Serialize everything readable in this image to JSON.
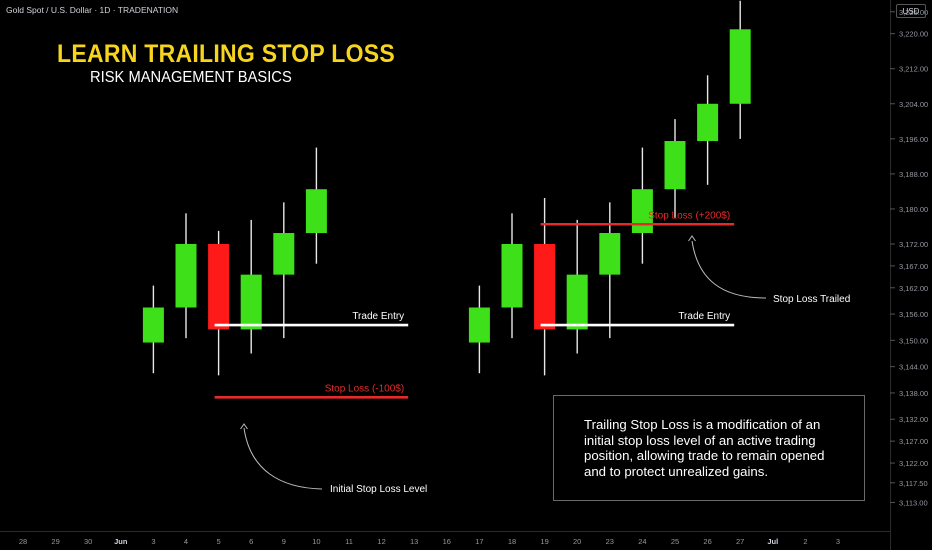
{
  "header": {
    "symbol": "Gold Spot / U.S. Dollar · 1D · TRADENATION",
    "title": "LEARN TRAILING STOP LOSS",
    "subtitle": "RISK MANAGEMENT BASICS",
    "currency": "USD"
  },
  "colors": {
    "up": "#3ee01a",
    "down": "#ff1a1a",
    "stop_line": "#e52a2a",
    "entry_line": "#ffffff",
    "axis_text": "#9598a1",
    "title": "#f7d51d"
  },
  "info_box": {
    "lines": [
      "Trailing Stop Loss is a modification of an",
      "initial stop loss level of an active trading",
      "position, allowing trade to remain opened",
      "and to protect unrealized gains."
    ]
  },
  "chart_data": {
    "type": "candlestick",
    "y_axis": {
      "range": [
        3109,
        3227
      ],
      "ticks": [
        3113,
        3117.5,
        3122,
        3127,
        3132,
        3138,
        3144,
        3150,
        3156,
        3162,
        3167,
        3172,
        3180,
        3188,
        3196,
        3204,
        3212,
        3220,
        3225
      ],
      "tick_labels": [
        "3,113.00",
        "3,117.50",
        "3,122.00",
        "3,127.00",
        "3,132.00",
        "3,138.00",
        "3,144.00",
        "3,150.00",
        "3,156.00",
        "3,162.00",
        "3,167.00",
        "3,172.00",
        "3,180.00",
        "3,188.00",
        "3,196.00",
        "3,204.00",
        "3,212.00",
        "3,220.00",
        "3,225.00"
      ]
    },
    "x_axis": {
      "labels": [
        "28",
        "29",
        "30",
        "Jun",
        "3",
        "4",
        "5",
        "6",
        "9",
        "10",
        "11",
        "12",
        "13",
        "16",
        "17",
        "18",
        "19",
        "20",
        "23",
        "24",
        "25",
        "26",
        "27",
        "Jul",
        "2",
        "3"
      ],
      "bold_labels": [
        "Jun",
        "Jul"
      ]
    },
    "setups": [
      {
        "candles": [
          {
            "date": "3",
            "open": 3149.5,
            "high": 3162.5,
            "low": 3142.5,
            "close": 3157.5
          },
          {
            "date": "4",
            "open": 3157.5,
            "high": 3179.0,
            "low": 3150.5,
            "close": 3172.0
          },
          {
            "date": "5",
            "open": 3172.0,
            "high": 3175.0,
            "low": 3142.0,
            "close": 3152.5
          },
          {
            "date": "6",
            "open": 3152.5,
            "high": 3177.5,
            "low": 3147.0,
            "close": 3165.0
          },
          {
            "date": "9",
            "open": 3165.0,
            "high": 3181.5,
            "low": 3150.5,
            "close": 3174.5
          },
          {
            "date": "10",
            "open": 3174.5,
            "high": 3194.0,
            "low": 3167.5,
            "close": 3184.5
          }
        ],
        "lines": [
          {
            "kind": "entry",
            "label": "Trade Entry",
            "price": 3153.5,
            "from": "5",
            "to": "13"
          },
          {
            "kind": "stop",
            "label": "Stop Loss (-100$)",
            "price": 3137.0,
            "from": "5",
            "to": "13"
          }
        ],
        "annotations": [
          {
            "text": "Initial Stop Loss Level",
            "arrow_to": "Stop Loss (-100$)"
          }
        ]
      },
      {
        "candles": [
          {
            "date": "17",
            "open": 3149.5,
            "high": 3162.5,
            "low": 3142.5,
            "close": 3157.5
          },
          {
            "date": "18",
            "open": 3157.5,
            "high": 3179.0,
            "low": 3150.5,
            "close": 3172.0
          },
          {
            "date": "19",
            "open": 3172.0,
            "high": 3182.5,
            "low": 3142.0,
            "close": 3152.5
          },
          {
            "date": "20",
            "open": 3152.5,
            "high": 3177.5,
            "low": 3147.0,
            "close": 3165.0
          },
          {
            "date": "23",
            "open": 3165.0,
            "high": 3181.5,
            "low": 3150.5,
            "close": 3174.5
          },
          {
            "date": "24",
            "open": 3174.5,
            "high": 3194.0,
            "low": 3167.5,
            "close": 3184.5
          },
          {
            "date": "25",
            "open": 3184.5,
            "high": 3200.5,
            "low": 3178.0,
            "close": 3195.5
          },
          {
            "date": "26",
            "open": 3195.5,
            "high": 3210.5,
            "low": 3185.5,
            "close": 3204.0
          },
          {
            "date": "27",
            "open": 3204.0,
            "high": 3227.5,
            "low": 3196.0,
            "close": 3221.0
          }
        ],
        "lines": [
          {
            "kind": "entry",
            "label": "Trade Entry",
            "price": 3153.5,
            "from": "19",
            "to": "27"
          },
          {
            "kind": "stop",
            "label": "Stop Loss (+200$)",
            "price": 3176.5,
            "from": "19",
            "to": "27"
          }
        ],
        "annotations": [
          {
            "text": "Stop Loss Trailed",
            "arrow_to": "Stop Loss (+200$)"
          }
        ]
      }
    ]
  }
}
